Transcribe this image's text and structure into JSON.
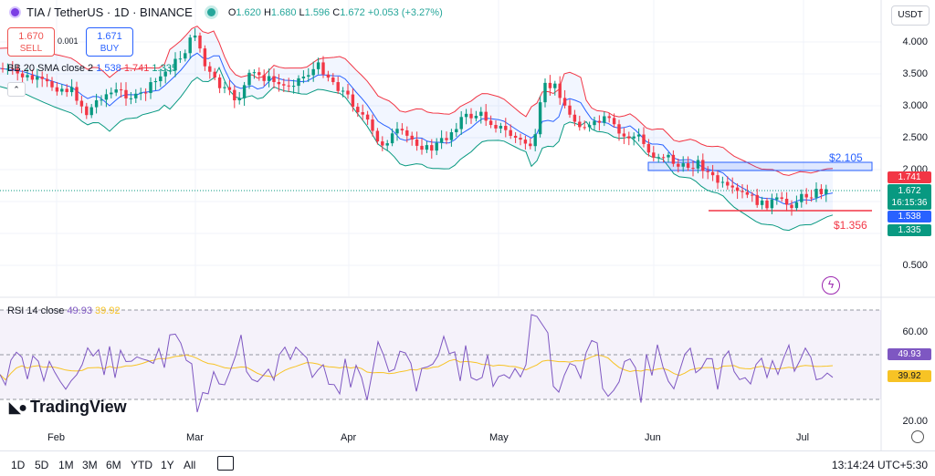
{
  "header": {
    "symbol": "TIA / TetherUS · 1D · BINANCE",
    "open_label": "O",
    "open": "1.620",
    "high_label": "H",
    "high": "1.680",
    "low_label": "L",
    "low": "1.596",
    "close_label": "C",
    "close": "1.672",
    "change": "+0.053 (+3.27%)"
  },
  "trade": {
    "sell_price": "1.670",
    "sell_label": "SELL",
    "spread": "0.001",
    "buy_price": "1.671",
    "buy_label": "BUY"
  },
  "bollinger": {
    "label": "BB 20 SMA close 2",
    "basis": "1.538",
    "upper": "1.741",
    "lower": "1.335"
  },
  "collapse_glyph": "⌃",
  "rsi": {
    "label": "RSI 14 close",
    "value": "49.93",
    "ma": "39.92"
  },
  "currency": "USDT",
  "price_axis": [
    "4.000",
    "3.500",
    "3.000",
    "2.500",
    "2.000",
    "0.500"
  ],
  "rsi_axis": [
    "60.00",
    "20.00"
  ],
  "price_tags": {
    "upper": "1.741",
    "close": "1.672",
    "countdown": "16:15:36",
    "basis": "1.538",
    "lower": "1.335"
  },
  "annotations": {
    "resistance": "$2.105",
    "support": "$1.356"
  },
  "time_axis": [
    "Feb",
    "Mar",
    "Apr",
    "May",
    "Jun",
    "Jul"
  ],
  "logo_text": "TradingView",
  "timeframes": [
    "1D",
    "5D",
    "1M",
    "3M",
    "6M",
    "YTD",
    "1Y",
    "All"
  ],
  "clock": "13:14:24 UTC+5:30",
  "colors": {
    "up": "#089981",
    "down": "#f23645",
    "bb_basis": "#2962ff",
    "bb_upper": "#f23645",
    "bb_lower": "#089981",
    "rsi": "#7e57c2",
    "rsi_ma": "#f7c325"
  }
}
